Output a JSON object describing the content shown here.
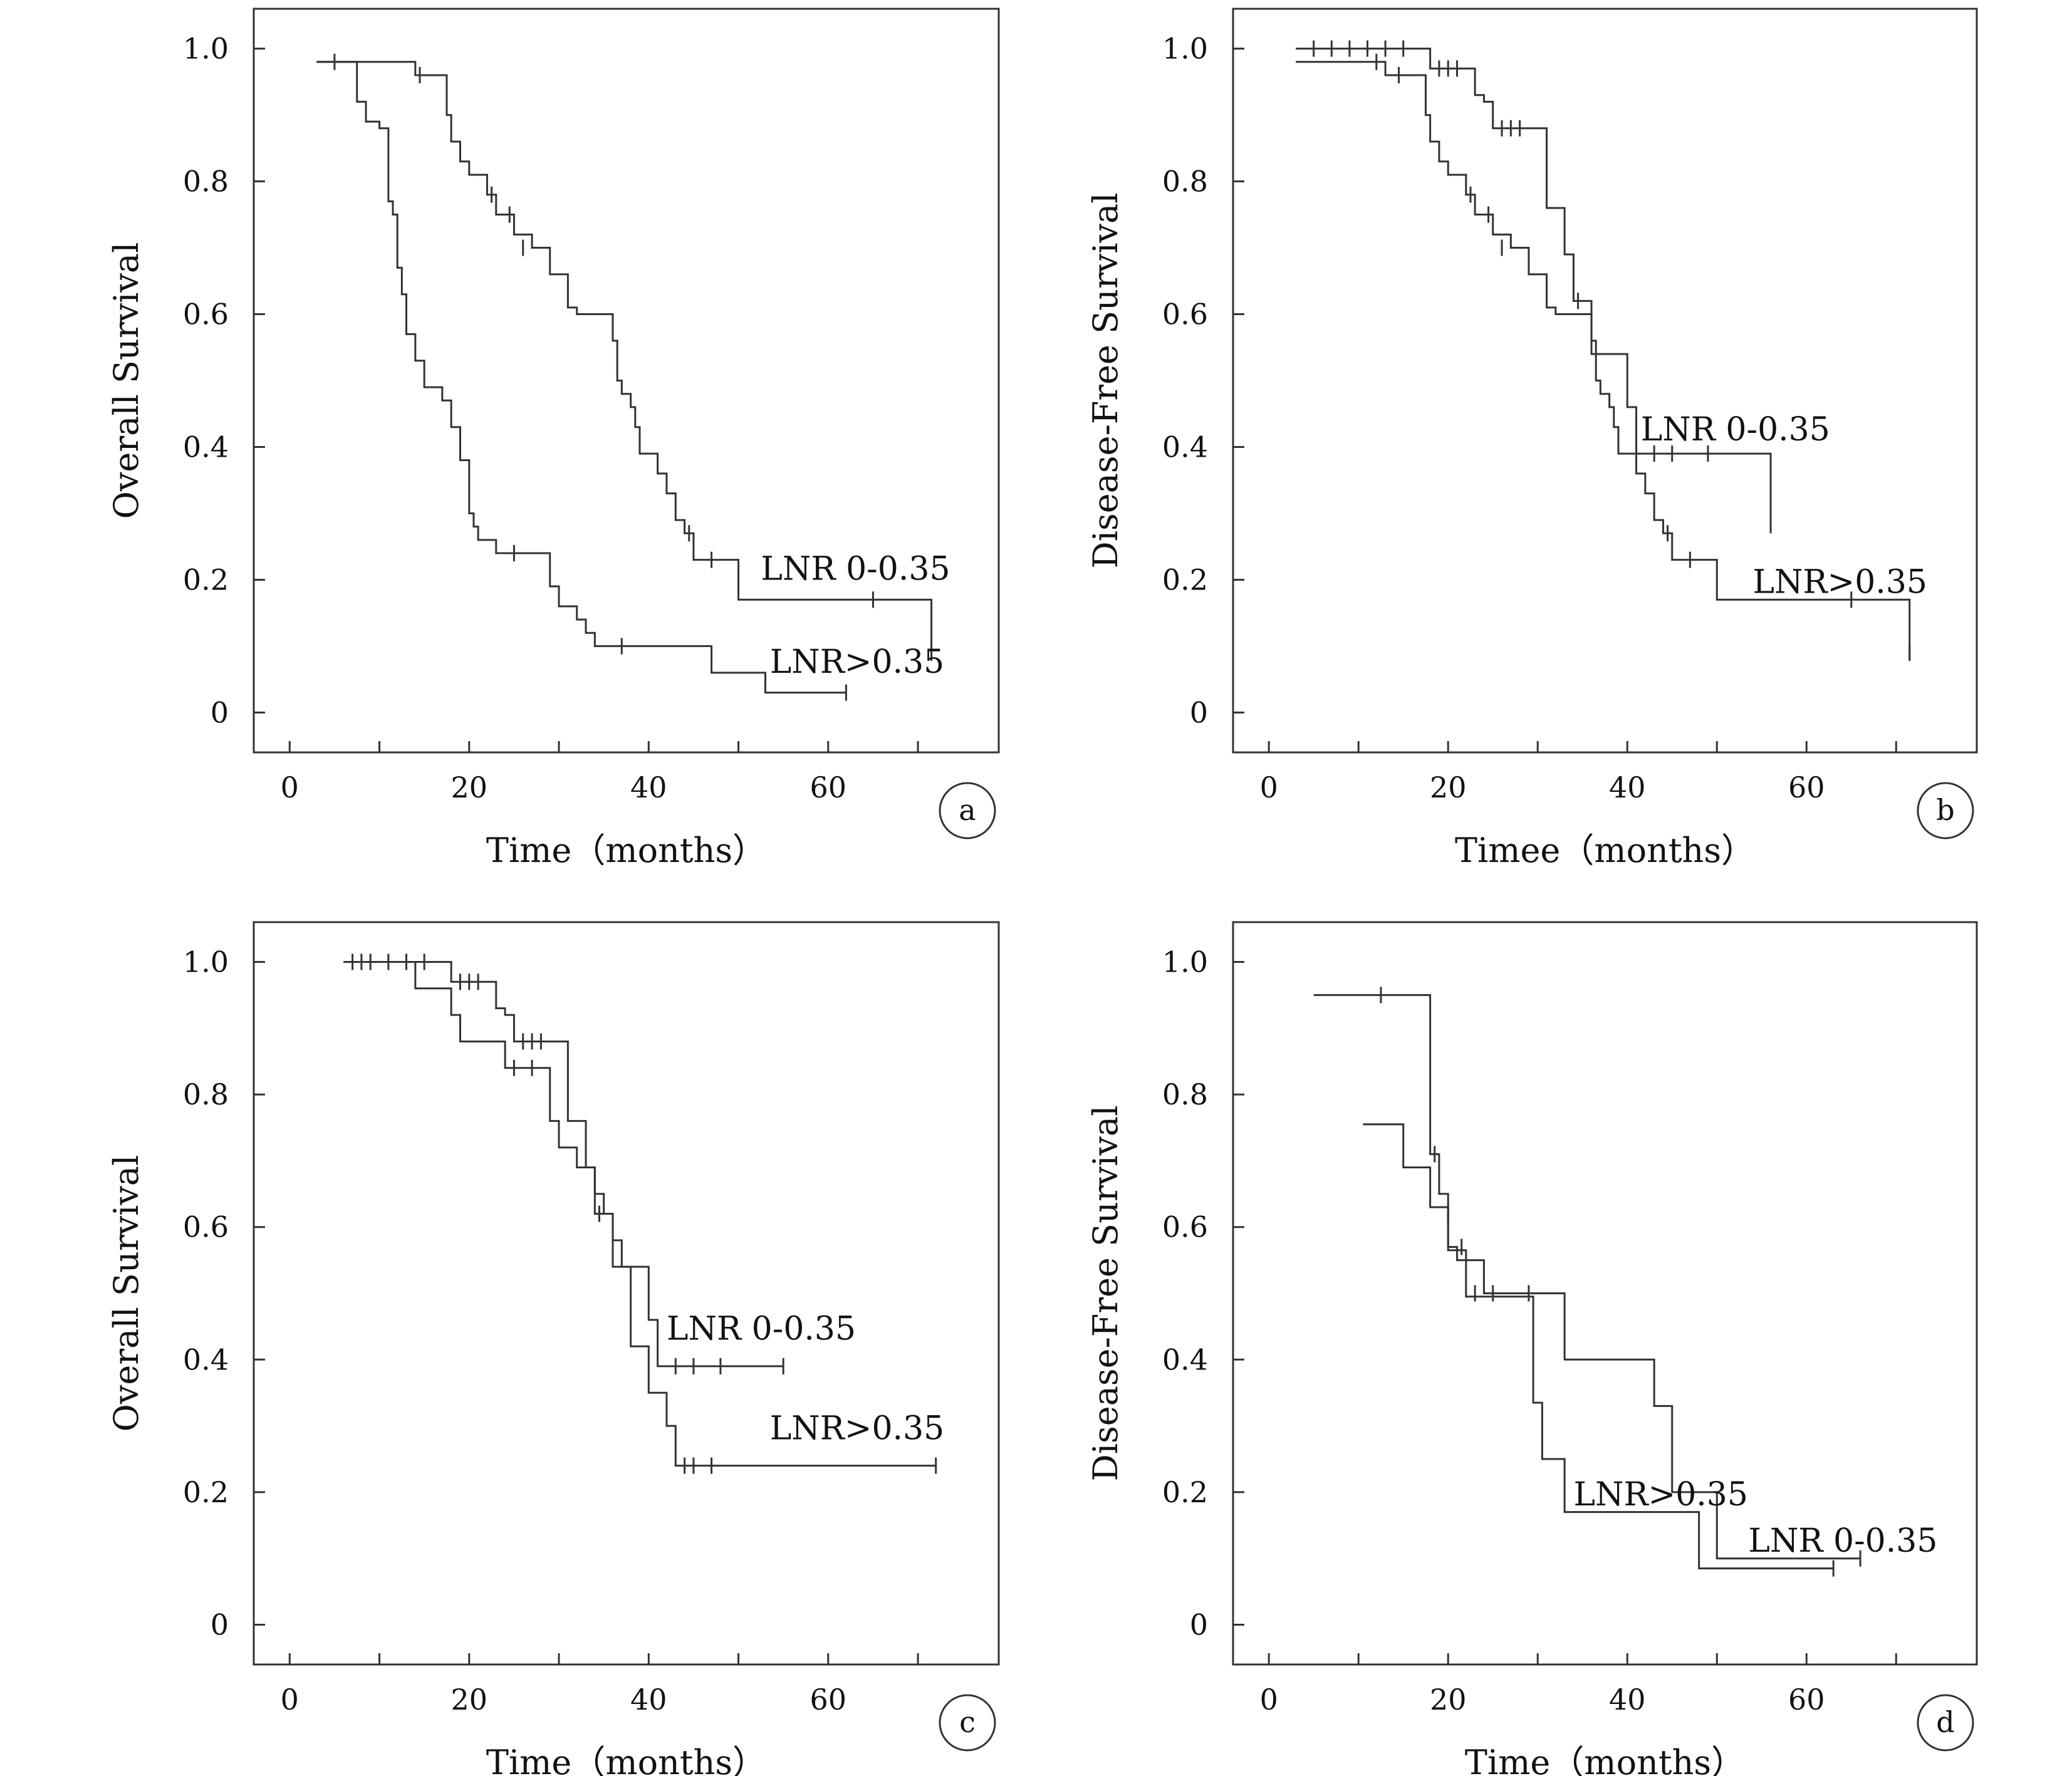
{
  "figure": {
    "line_color": "#333333",
    "background": "#ffffff"
  },
  "chart_data": [
    {
      "panel": "a",
      "type": "line",
      "step": true,
      "xlabel": "Time（months）",
      "ylabel": "Overall Survival",
      "xlim": [
        -4,
        79
      ],
      "ylim": [
        -0.06,
        1.06
      ],
      "xticks": [
        "0",
        "20",
        "40",
        "60"
      ],
      "yticks": [
        "0",
        "0.2",
        "0.4",
        "0.6",
        "0.8",
        "1.0"
      ],
      "grid": false,
      "legend": "inline labels",
      "series": [
        {
          "name": "LNR 0-0.35",
          "x": [
            3,
            13,
            14,
            17,
            17.5,
            18,
            19,
            20,
            22,
            23,
            25,
            27,
            28,
            29,
            31,
            32,
            35,
            36,
            36.5,
            37,
            38,
            38.5,
            39,
            41,
            42,
            43,
            44,
            45,
            50,
            71,
            71.5
          ],
          "y": [
            0.98,
            0.98,
            0.96,
            0.96,
            0.9,
            0.86,
            0.83,
            0.81,
            0.78,
            0.75,
            0.72,
            0.7,
            0.7,
            0.66,
            0.61,
            0.6,
            0.6,
            0.56,
            0.5,
            0.48,
            0.46,
            0.43,
            0.39,
            0.36,
            0.33,
            0.29,
            0.27,
            0.23,
            0.17,
            0.17,
            0.08
          ],
          "censored": [
            [
              14.5,
              0.96
            ],
            [
              22.5,
              0.78
            ],
            [
              24.5,
              0.75
            ],
            [
              26,
              0.7
            ],
            [
              44.5,
              0.27
            ],
            [
              47,
              0.23
            ],
            [
              65,
              0.17
            ],
            [
              71.5,
              0.09
            ]
          ]
        },
        {
          "name": "LNR>0.35",
          "x": [
            3,
            7,
            7.5,
            8.5,
            10,
            11,
            11.5,
            12,
            12.5,
            13,
            14,
            15,
            16,
            17,
            18,
            19,
            20,
            20.5,
            21,
            23,
            28,
            29,
            30,
            32,
            33,
            34,
            35,
            38,
            47,
            53,
            62
          ],
          "y": [
            0.98,
            0.98,
            0.92,
            0.89,
            0.88,
            0.77,
            0.75,
            0.67,
            0.63,
            0.57,
            0.53,
            0.49,
            0.49,
            0.47,
            0.43,
            0.38,
            0.3,
            0.28,
            0.26,
            0.24,
            0.24,
            0.19,
            0.16,
            0.14,
            0.12,
            0.1,
            0.1,
            0.1,
            0.06,
            0.03,
            0.03
          ],
          "censored": [
            [
              5,
              0.98
            ],
            [
              25,
              0.24
            ],
            [
              37,
              0.1
            ],
            [
              62,
              0.03
            ]
          ]
        }
      ],
      "annotations": [
        {
          "text": "LNR 0-0.35",
          "x": 52.5,
          "y": 0.2
        },
        {
          "text": "LNR>0.35",
          "x": 53.5,
          "y": 0.06
        }
      ]
    },
    {
      "panel": "b",
      "type": "line",
      "step": true,
      "xlabel": "Timee（months）",
      "ylabel": "Disease-Free Survival",
      "xlim": [
        -4,
        79
      ],
      "ylim": [
        -0.06,
        1.06
      ],
      "xticks": [
        "0",
        "20",
        "40",
        "60"
      ],
      "yticks": [
        "0",
        "0.2",
        "0.4",
        "0.6",
        "0.8",
        "1.0"
      ],
      "grid": false,
      "legend": "inline labels",
      "series": [
        {
          "name": "LNR 0-0.35",
          "x": [
            3,
            18,
            23,
            24,
            25,
            30,
            31,
            33,
            34,
            35,
            36,
            40,
            41,
            55.5,
            56
          ],
          "y": [
            1.0,
            0.97,
            0.93,
            0.92,
            0.88,
            0.88,
            0.76,
            0.69,
            0.62,
            0.62,
            0.54,
            0.46,
            0.39,
            0.39,
            0.27
          ],
          "censored": [
            [
              5,
              1.0
            ],
            [
              7,
              1.0
            ],
            [
              9,
              1.0
            ],
            [
              11,
              1.0
            ],
            [
              13,
              1.0
            ],
            [
              15,
              1.0
            ],
            [
              19,
              0.97
            ],
            [
              20,
              0.97
            ],
            [
              21,
              0.97
            ],
            [
              26,
              0.88
            ],
            [
              27,
              0.88
            ],
            [
              28,
              0.88
            ],
            [
              34.5,
              0.62
            ],
            [
              43,
              0.39
            ],
            [
              45,
              0.39
            ],
            [
              49,
              0.39
            ]
          ]
        },
        {
          "name": "LNR>0.35",
          "x": [
            3,
            10,
            13,
            17,
            17.5,
            18,
            19,
            20,
            22,
            23,
            25,
            27,
            28,
            29,
            31,
            32,
            35,
            36,
            36.5,
            37,
            38,
            38.5,
            39,
            41,
            42,
            43,
            44,
            45,
            50,
            71,
            71.5
          ],
          "y": [
            0.98,
            0.98,
            0.96,
            0.96,
            0.9,
            0.86,
            0.83,
            0.81,
            0.78,
            0.75,
            0.72,
            0.7,
            0.7,
            0.66,
            0.61,
            0.6,
            0.6,
            0.56,
            0.5,
            0.48,
            0.46,
            0.43,
            0.39,
            0.36,
            0.33,
            0.29,
            0.27,
            0.23,
            0.17,
            0.17,
            0.08
          ],
          "censored": [
            [
              12,
              0.98
            ],
            [
              14.5,
              0.96
            ],
            [
              22.5,
              0.78
            ],
            [
              24.5,
              0.75
            ],
            [
              26,
              0.7
            ],
            [
              44.5,
              0.27
            ],
            [
              47,
              0.23
            ],
            [
              65,
              0.17
            ],
            [
              71.5,
              0.09
            ]
          ]
        }
      ],
      "annotations": [
        {
          "text": "LNR 0-0.35",
          "x": 41.5,
          "y": 0.41
        },
        {
          "text": "LNR>0.35",
          "x": 54,
          "y": 0.18
        }
      ]
    },
    {
      "panel": "c",
      "type": "line",
      "step": true,
      "xlabel": "Time（months）",
      "ylabel": "Overall Survival",
      "xlim": [
        -4,
        79
      ],
      "ylim": [
        -0.06,
        1.06
      ],
      "xticks": [
        "0",
        "20",
        "40",
        "60"
      ],
      "yticks": [
        "0",
        "0.2",
        "0.4",
        "0.6",
        "0.8",
        "1.0"
      ],
      "grid": false,
      "legend": "inline labels",
      "series": [
        {
          "name": "LNR 0-0.35",
          "x": [
            6,
            18,
            23,
            24,
            25,
            30,
            31,
            33,
            34,
            35,
            36,
            40,
            41,
            55
          ],
          "y": [
            1.0,
            0.97,
            0.93,
            0.92,
            0.88,
            0.88,
            0.76,
            0.69,
            0.62,
            0.62,
            0.54,
            0.46,
            0.39,
            0.39
          ],
          "censored": [
            [
              7,
              1.0
            ],
            [
              9,
              1.0
            ],
            [
              11,
              1.0
            ],
            [
              13,
              1.0
            ],
            [
              15,
              1.0
            ],
            [
              19,
              0.97
            ],
            [
              20,
              0.97
            ],
            [
              21,
              0.97
            ],
            [
              26,
              0.88
            ],
            [
              27,
              0.88
            ],
            [
              28,
              0.88
            ],
            [
              34.5,
              0.62
            ],
            [
              43,
              0.39
            ],
            [
              45,
              0.39
            ],
            [
              48,
              0.39
            ],
            [
              55,
              0.39
            ]
          ]
        },
        {
          "name": "LNR>0.35",
          "x": [
            6,
            14,
            18,
            19,
            21,
            24,
            28,
            29,
            30,
            32,
            34,
            35,
            36,
            37,
            38,
            40,
            42,
            43,
            72
          ],
          "y": [
            1.0,
            0.96,
            0.92,
            0.88,
            0.88,
            0.84,
            0.84,
            0.76,
            0.72,
            0.69,
            0.65,
            0.62,
            0.58,
            0.54,
            0.42,
            0.35,
            0.3,
            0.24,
            0.24
          ],
          "censored": [
            [
              8,
              1.0
            ],
            [
              25,
              0.84
            ],
            [
              27,
              0.84
            ],
            [
              44,
              0.24
            ],
            [
              45,
              0.24
            ],
            [
              47,
              0.24
            ],
            [
              72,
              0.24
            ]
          ]
        }
      ],
      "annotations": [
        {
          "text": "LNR 0-0.35",
          "x": 42,
          "y": 0.43
        },
        {
          "text": "LNR>0.35",
          "x": 53.5,
          "y": 0.28
        }
      ]
    },
    {
      "panel": "d",
      "type": "line",
      "step": true,
      "xlabel": "Time（months）",
      "ylabel": "Disease-Free Survival",
      "xlim": [
        -4,
        79
      ],
      "ylim": [
        -0.06,
        1.06
      ],
      "xticks": [
        "0",
        "20",
        "40",
        "60"
      ],
      "yticks": [
        "0",
        "0.2",
        "0.4",
        "0.6",
        "0.8",
        "1.0"
      ],
      "grid": false,
      "legend": "inline labels",
      "series": [
        {
          "name": "LNR 0-0.35",
          "x": [
            5,
            18,
            19,
            20,
            21,
            24,
            30,
            33,
            43,
            45,
            48,
            50,
            66
          ],
          "y": [
            0.95,
            0.71,
            0.65,
            0.57,
            0.55,
            0.5,
            0.5,
            0.4,
            0.33,
            0.2,
            0.2,
            0.1,
            0.1
          ],
          "censored": [
            [
              12.5,
              0.95
            ],
            [
              18.5,
              0.71
            ],
            [
              21.5,
              0.57
            ],
            [
              29,
              0.5
            ],
            [
              66,
              0.1
            ]
          ]
        },
        {
          "name": "LNR>0.35",
          "x": [
            10.5,
            15,
            18,
            20,
            22,
            27,
            29.5,
            30.5,
            33,
            47,
            48,
            63
          ],
          "y": [
            0.755,
            0.69,
            0.63,
            0.565,
            0.495,
            0.495,
            0.335,
            0.25,
            0.17,
            0.17,
            0.085,
            0.085
          ],
          "censored": [
            [
              20,
              0.62
            ],
            [
              23,
              0.5
            ],
            [
              25,
              0.5
            ],
            [
              63,
              0.085
            ]
          ]
        }
      ],
      "annotations": [
        {
          "text": "LNR>0.35",
          "x": 34,
          "y": 0.18
        },
        {
          "text": "LNR 0-0.35",
          "x": 53.5,
          "y": 0.11
        }
      ]
    }
  ]
}
